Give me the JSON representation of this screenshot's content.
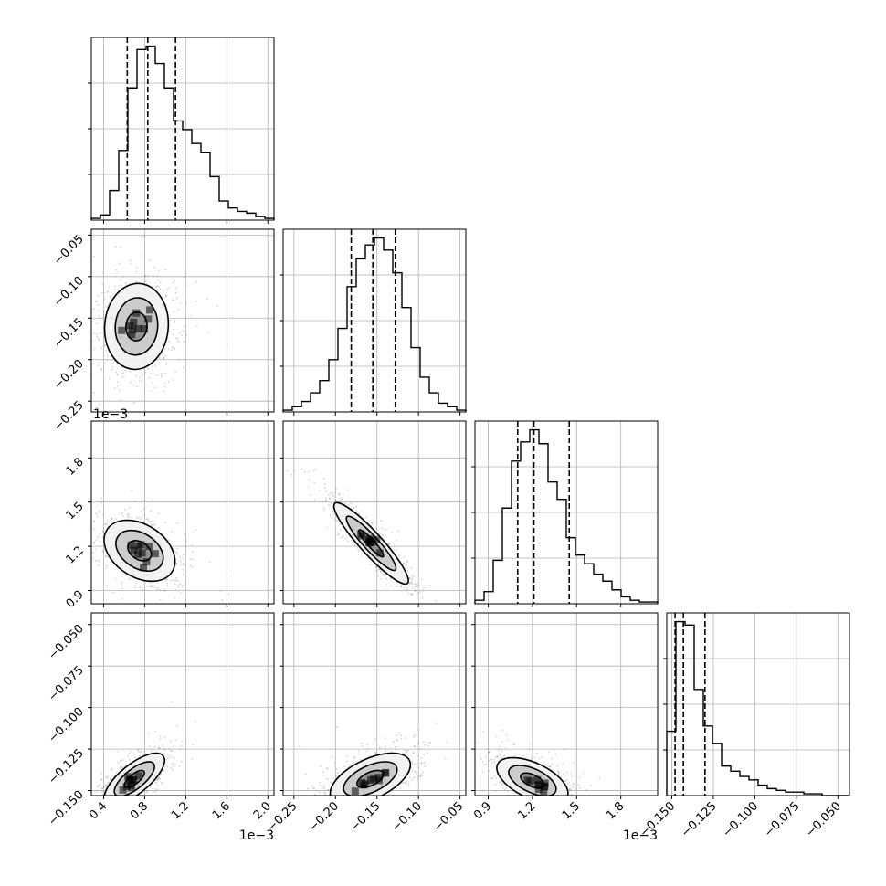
{
  "chart_data": {
    "type": "corner",
    "title": "",
    "parameters": [
      {
        "name": "",
        "range": [
          0.28,
          2.06
        ],
        "ticks": [
          0.4,
          0.8,
          1.2,
          1.6,
          2.0
        ],
        "tick_labels": [
          "0.4",
          "0.8",
          "1.2",
          "1.6",
          "2.0"
        ],
        "offset_label": "1e−3",
        "quantiles": [
          0.63,
          0.83,
          1.1
        ],
        "histogram": [
          0.01,
          0.03,
          0.17,
          0.4,
          0.76,
          0.98,
          1.0,
          0.9,
          0.76,
          0.57,
          0.52,
          0.44,
          0.39,
          0.25,
          0.11,
          0.07,
          0.05,
          0.04,
          0.02,
          0.01
        ]
      },
      {
        "name": "",
        "range": [
          -0.263,
          -0.043
        ],
        "ticks": [
          -0.25,
          -0.2,
          -0.15,
          -0.1,
          -0.05
        ],
        "tick_labels": [
          "−0.25",
          "−0.20",
          "−0.15",
          "−0.10",
          "−0.05"
        ],
        "offset_label": "",
        "quantiles": [
          -0.181,
          -0.155,
          -0.128
        ],
        "histogram": [
          0.01,
          0.03,
          0.06,
          0.11,
          0.18,
          0.3,
          0.48,
          0.72,
          0.88,
          0.96,
          1.0,
          0.93,
          0.8,
          0.6,
          0.37,
          0.2,
          0.11,
          0.05,
          0.03,
          0.01
        ]
      },
      {
        "name": "",
        "range": [
          0.81,
          2.05
        ],
        "ticks": [
          0.9,
          1.2,
          1.5,
          1.8
        ],
        "tick_labels": [
          "0.9",
          "1.2",
          "1.5",
          "1.8"
        ],
        "offset_label": "1e−3",
        "quantiles": [
          1.1,
          1.21,
          1.45
        ],
        "histogram": [
          0.02,
          0.07,
          0.25,
          0.55,
          0.82,
          0.93,
          1.0,
          0.92,
          0.7,
          0.6,
          0.38,
          0.28,
          0.23,
          0.17,
          0.13,
          0.08,
          0.04,
          0.02,
          0.01,
          0.01
        ]
      },
      {
        "name": "",
        "range": [
          -0.153,
          -0.043
        ],
        "ticks": [
          -0.15,
          -0.125,
          -0.1,
          -0.075,
          -0.05
        ],
        "tick_labels": [
          "−0.150",
          "−0.125",
          "−0.100",
          "−0.075",
          "−0.050"
        ],
        "offset_label": "",
        "quantiles": [
          -0.148,
          -0.143,
          -0.13
        ],
        "histogram": [
          0.37,
          1.0,
          0.98,
          0.61,
          0.4,
          0.3,
          0.17,
          0.14,
          0.11,
          0.09,
          0.06,
          0.04,
          0.03,
          0.02,
          0.02,
          0.01,
          0.01,
          0.0,
          0.0,
          0.0
        ]
      }
    ],
    "pairs": [
      {
        "row": 1,
        "col": 0,
        "mean": [
          0.72,
          -0.16
        ],
        "sd": [
          0.18,
          0.03
        ],
        "rho": 0.05,
        "contour_sizes": [
          0.5,
          1.0,
          1.5
        ]
      },
      {
        "row": 2,
        "col": 0,
        "mean": [
          0.75,
          1.17
        ],
        "sd": [
          0.2,
          0.12
        ],
        "rho": -0.35,
        "contour_sizes": [
          0.5,
          1.0,
          1.5
        ]
      },
      {
        "row": 2,
        "col": 1,
        "mean": [
          -0.157,
          1.22
        ],
        "sd": [
          0.026,
          0.16
        ],
        "rho": -0.92,
        "contour_sizes": [
          0.5,
          1.0,
          1.5
        ]
      },
      {
        "row": 3,
        "col": 0,
        "mean": [
          0.7,
          -0.143
        ],
        "sd": [
          0.17,
          0.009
        ],
        "rho": 0.72,
        "contour_sizes": [
          0.5,
          1.0,
          1.5
        ]
      },
      {
        "row": 3,
        "col": 1,
        "mean": [
          -0.158,
          -0.143
        ],
        "sd": [
          0.028,
          0.009
        ],
        "rho": 0.55,
        "contour_sizes": [
          0.5,
          1.0,
          1.5
        ]
      },
      {
        "row": 3,
        "col": 2,
        "mean": [
          1.2,
          -0.144
        ],
        "sd": [
          0.14,
          0.008
        ],
        "rho": -0.55,
        "contour_sizes": [
          0.5,
          1.0,
          1.5
        ]
      }
    ],
    "grid": true,
    "colors": {
      "axes": "#000000",
      "grid": "#b0b0b0",
      "points": "#808080",
      "density": "#000000"
    }
  }
}
